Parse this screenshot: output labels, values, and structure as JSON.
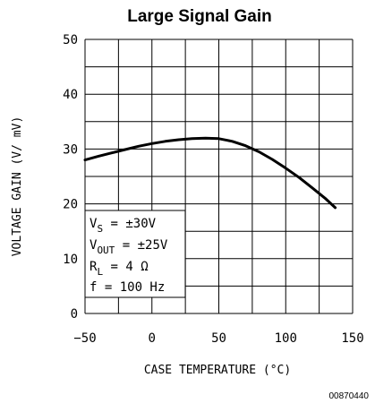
{
  "chart_data": {
    "type": "line",
    "title": "Large Signal Gain",
    "xlabel": "CASE TEMPERATURE (°C)",
    "ylabel": "VOLTAGE GAIN (V/ mV)",
    "xlim": [
      -50,
      150
    ],
    "ylim": [
      0,
      50
    ],
    "xticks": [
      -50,
      0,
      50,
      100,
      150
    ],
    "yticks": [
      0,
      10,
      20,
      30,
      40,
      50
    ],
    "grid": true,
    "series": [
      {
        "x": [
          -50,
          -40,
          -30,
          -20,
          -10,
          0,
          10,
          20,
          30,
          40,
          50,
          60,
          70,
          80,
          90,
          100,
          110,
          120,
          130,
          137
        ],
        "y": [
          28.0,
          28.7,
          29.3,
          29.9,
          30.5,
          31.0,
          31.4,
          31.7,
          31.9,
          32.0,
          31.9,
          31.4,
          30.6,
          29.5,
          28.1,
          26.5,
          24.8,
          22.9,
          20.9,
          19.3
        ]
      }
    ],
    "conditions": [
      {
        "main": "V",
        "sub": "S",
        "rest": " = ±30V"
      },
      {
        "main": "V",
        "sub": "OUT",
        "rest": " = ±25V"
      },
      {
        "main": "R",
        "sub": "L",
        "rest": " = 4 Ω"
      },
      {
        "main": "f = 100 Hz",
        "sub": "",
        "rest": ""
      }
    ],
    "figure_code": "00870440"
  }
}
